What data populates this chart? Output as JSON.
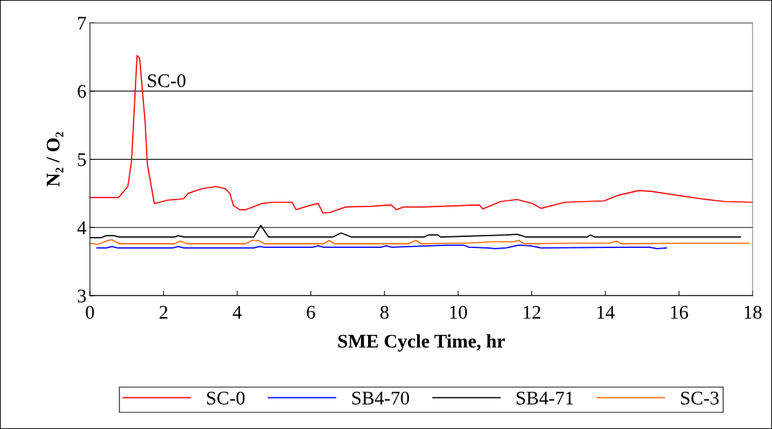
{
  "chart_data": {
    "type": "line",
    "xlabel": "SME Cycle Time, hr",
    "ylabel": "N₂ / O₂",
    "xlim": [
      0,
      18
    ],
    "ylim": [
      3,
      7
    ],
    "xticks": [
      0,
      2,
      4,
      6,
      8,
      10,
      12,
      14,
      16,
      18
    ],
    "yticks": [
      3,
      4,
      5,
      6,
      7
    ],
    "grid": "y",
    "legend": "bottom",
    "marker": "none",
    "line_style": "solid",
    "annotations": [
      {
        "text": "SC-0",
        "x": 1.28,
        "y": 6.52
      }
    ],
    "series": [
      {
        "name": "SC-0",
        "color": "#ff0000",
        "x": [
          0,
          0.5,
          0.78,
          1.03,
          1.13,
          1.28,
          1.35,
          1.5,
          1.56,
          1.75,
          2.1,
          2.54,
          2.67,
          3.05,
          3.42,
          3.67,
          3.8,
          3.9,
          4.07,
          4.23,
          4.67,
          4.98,
          5.49,
          5.6,
          5.83,
          6.1,
          6.2,
          6.33,
          6.52,
          6.95,
          7.65,
          8.18,
          8.33,
          8.52,
          9.08,
          10.58,
          10.67,
          11.15,
          11.6,
          12.03,
          12.25,
          12.9,
          13.97,
          14.34,
          14.9,
          15.23,
          16.1,
          16.6,
          17.24,
          18
        ],
        "values": [
          4.44,
          4.44,
          4.44,
          4.6,
          4.97,
          6.52,
          6.48,
          5.54,
          4.93,
          4.35,
          4.4,
          4.42,
          4.5,
          4.57,
          4.6,
          4.57,
          4.5,
          4.32,
          4.26,
          4.26,
          4.35,
          4.37,
          4.37,
          4.26,
          4.3,
          4.34,
          4.35,
          4.21,
          4.22,
          4.3,
          4.31,
          4.33,
          4.26,
          4.3,
          4.3,
          4.33,
          4.27,
          4.38,
          4.41,
          4.35,
          4.28,
          4.37,
          4.39,
          4.47,
          4.54,
          4.53,
          4.46,
          4.42,
          4.38,
          4.37
        ]
      },
      {
        "name": "SB4-70",
        "color": "#0000ff",
        "x": [
          0.19,
          0.45,
          0.6,
          0.75,
          2.25,
          2.4,
          2.55,
          4.45,
          4.6,
          4.75,
          6.05,
          6.2,
          6.35,
          7.9,
          8.05,
          8.2,
          9.7,
          10.15,
          10.3,
          10.8,
          11.0,
          11.3,
          11.65,
          11.97,
          12.25,
          14.7,
          15.2,
          15.4,
          15.66
        ],
        "values": [
          3.7,
          3.7,
          3.72,
          3.7,
          3.7,
          3.72,
          3.7,
          3.7,
          3.72,
          3.71,
          3.71,
          3.73,
          3.71,
          3.71,
          3.73,
          3.71,
          3.74,
          3.74,
          3.71,
          3.7,
          3.69,
          3.7,
          3.74,
          3.73,
          3.7,
          3.71,
          3.71,
          3.69,
          3.7
        ]
      },
      {
        "name": "SB4-71",
        "color": "#000000",
        "x": [
          0,
          0.3,
          0.45,
          0.65,
          0.8,
          2.3,
          2.4,
          2.55,
          4.45,
          4.64,
          4.85,
          6.6,
          6.82,
          7.1,
          9.08,
          9.2,
          9.45,
          9.53,
          11.3,
          11.6,
          11.84,
          13.5,
          13.6,
          13.7,
          17.67
        ],
        "values": [
          3.85,
          3.85,
          3.88,
          3.88,
          3.86,
          3.86,
          3.88,
          3.86,
          3.86,
          4.03,
          3.86,
          3.86,
          3.92,
          3.86,
          3.86,
          3.89,
          3.89,
          3.86,
          3.89,
          3.9,
          3.86,
          3.86,
          3.89,
          3.86,
          3.86
        ]
      },
      {
        "name": "SC-3",
        "color": "#ff6600",
        "x": [
          0,
          0.2,
          0.5,
          0.6,
          0.8,
          2.3,
          2.45,
          2.65,
          4.23,
          4.4,
          4.57,
          4.75,
          6.35,
          6.5,
          6.65,
          8.65,
          8.85,
          9.0,
          9.8,
          10.2,
          10.9,
          11.5,
          11.65,
          11.8,
          13.1,
          14.1,
          14.3,
          14.45,
          16.3,
          17.67,
          17.9
        ],
        "values": [
          3.77,
          3.75,
          3.81,
          3.82,
          3.76,
          3.76,
          3.8,
          3.76,
          3.76,
          3.81,
          3.81,
          3.76,
          3.76,
          3.81,
          3.76,
          3.76,
          3.81,
          3.76,
          3.77,
          3.77,
          3.79,
          3.79,
          3.81,
          3.76,
          3.77,
          3.77,
          3.8,
          3.76,
          3.77,
          3.77,
          3.77
        ]
      }
    ]
  }
}
